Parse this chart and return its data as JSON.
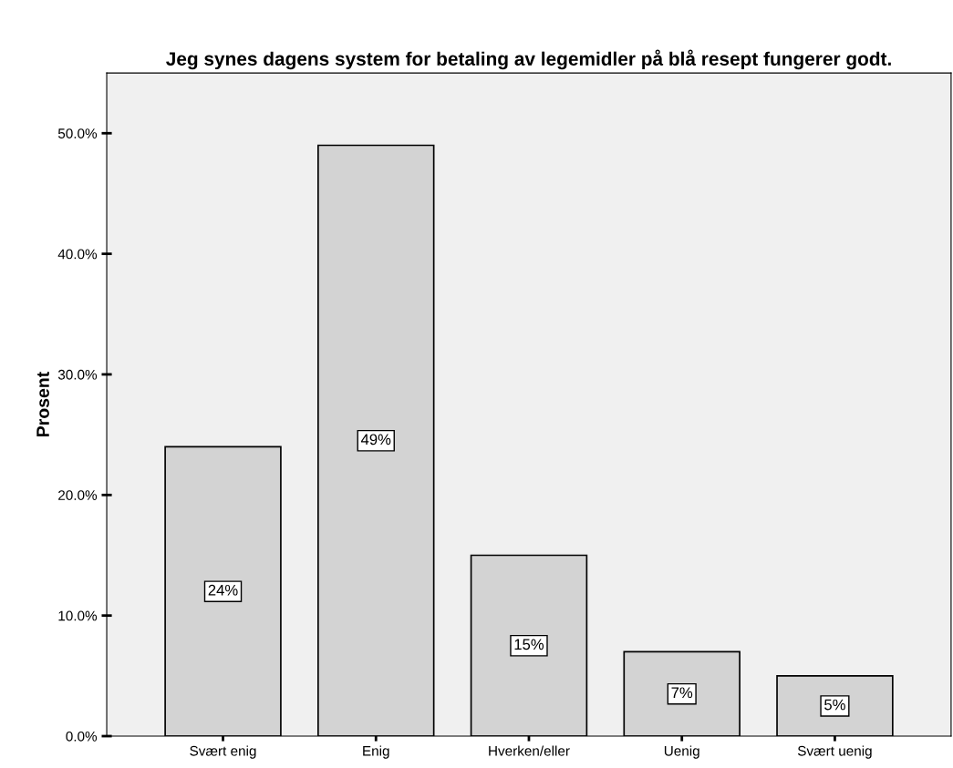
{
  "chart_data": {
    "type": "bar",
    "title": "Jeg synes dagens system for betaling av legemidler på blå resept fungerer godt.",
    "ylabel": "Prosent",
    "categories": [
      "Svært enig",
      "Enig",
      "Hverken/eller",
      "Uenig",
      "Svært uenig"
    ],
    "values": [
      24,
      49,
      15,
      7,
      5
    ],
    "value_labels": [
      "24%",
      "49%",
      "15%",
      "7%",
      "5%"
    ],
    "color": "#d3d3d3",
    "ylim": [
      0,
      55
    ],
    "yticks": [
      {
        "value": 0,
        "label": "0.0%"
      },
      {
        "value": 10,
        "label": "10.0%"
      },
      {
        "value": 20,
        "label": "20.0%"
      },
      {
        "value": 30,
        "label": "30.0%"
      },
      {
        "value": 40,
        "label": "40.0%"
      },
      {
        "value": 50,
        "label": "50.0%"
      }
    ],
    "grid": false,
    "legend": false
  }
}
